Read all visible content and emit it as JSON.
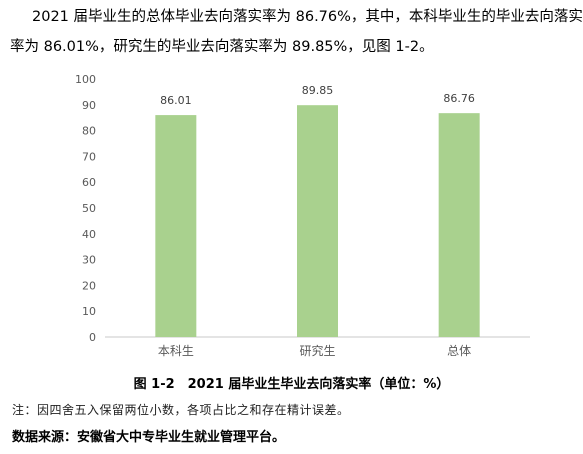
{
  "paragraph": {
    "line1": "2021 届毕业生的总体毕业去向落实率为 86.76%，其中，本科毕业生的毕业去向落实",
    "line2": "率为 86.01%，研究生的毕业去向落实率为 89.85%，见图 1-2。"
  },
  "chart_data": {
    "type": "bar",
    "categories": [
      "本科生",
      "研究生",
      "总体"
    ],
    "values": [
      86.01,
      89.85,
      86.76
    ],
    "data_labels": [
      "86.01",
      "89.85",
      "86.76"
    ],
    "ylim": [
      0,
      100
    ],
    "yticks": [
      0,
      10,
      20,
      30,
      40,
      50,
      60,
      70,
      80,
      90,
      100
    ],
    "ytick_labels": [
      "0",
      "10",
      "20",
      "30",
      "40",
      "50",
      "60",
      "70",
      "80",
      "90",
      "100"
    ],
    "bar_color": "#a9d18e",
    "grid": false,
    "legend": "none"
  },
  "caption": "图 1-2　2021 届毕业生毕业去向落实率（单位：%）",
  "note": "注：因四舍五入保留两位小数，各项占比之和存在精计误差。",
  "source": "数据来源：安徽省大中专毕业生就业管理平台。"
}
